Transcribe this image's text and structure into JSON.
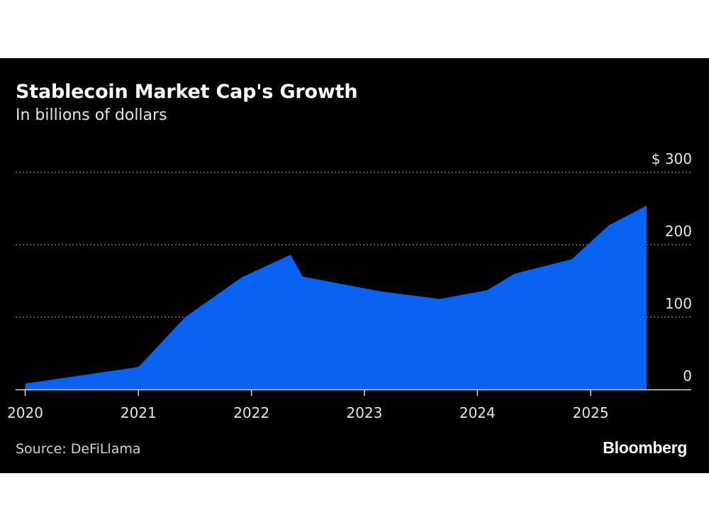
{
  "title": "Stablecoin Market Cap's Growth",
  "subtitle": "In billions of dollars",
  "source": "Source: DeFiLlama",
  "brand": "Bloomberg",
  "colors": {
    "background": "#000000",
    "area": "#0a63f0",
    "grid": "#8c8c8c",
    "text": "#e6e6e6"
  },
  "chart_data": {
    "type": "area",
    "title": "Stablecoin Market Cap's Growth",
    "subtitle": "In billions of dollars",
    "xlabel": "",
    "ylabel": "",
    "ylim": [
      0,
      300
    ],
    "xlim": [
      "2019-12-01",
      "2025-12-31"
    ],
    "yticks": [
      0,
      100,
      200,
      300
    ],
    "ytick_labels": [
      "0",
      "100",
      "200",
      "$ 300"
    ],
    "xticks": [
      "2020-01-01",
      "2021-01-01",
      "2022-01-01",
      "2023-01-01",
      "2024-01-01",
      "2025-01-01"
    ],
    "xtick_labels": [
      "2020",
      "2021",
      "2022",
      "2023",
      "2024",
      "2025"
    ],
    "grid": true,
    "legend": "none",
    "series": [
      {
        "points": [
          [
            "2020-01-01",
            8
          ],
          [
            "2021-01-01",
            31
          ],
          [
            "2021-06-01",
            100
          ],
          [
            "2021-12-01",
            155
          ],
          [
            "2022-05-07",
            186
          ],
          [
            "2022-06-15",
            156
          ],
          [
            "2023-02-15",
            136
          ],
          [
            "2023-09-01",
            125
          ],
          [
            "2024-02-01",
            137
          ],
          [
            "2024-05-01",
            160
          ],
          [
            "2024-11-01",
            180
          ],
          [
            "2025-03-01",
            227
          ],
          [
            "2025-07-01",
            254
          ]
        ]
      }
    ]
  }
}
